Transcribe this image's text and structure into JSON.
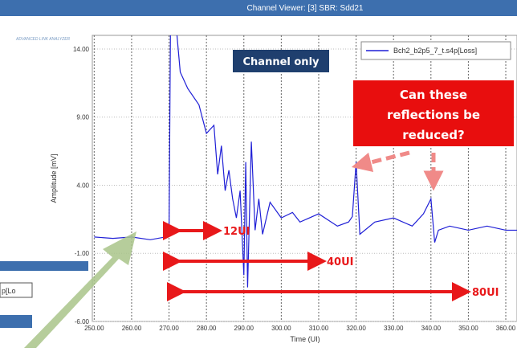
{
  "chart_data": {
    "type": "line",
    "title": "Channel Viewer: [3] SBR: Sdd21",
    "logo": "ADVANCED LINK ANALYZER",
    "x_label": "Time (UI)",
    "y_label": "Amplitude [mV]",
    "series": [
      {
        "name": "Bch2_b2p5_7_t.s4p[Loss]",
        "color": "#1f1fd6",
        "x": [
          250,
          255,
          260,
          265,
          270,
          270.5,
          273,
          275,
          278,
          280,
          282,
          283,
          284,
          285,
          286,
          287,
          288,
          289,
          290,
          290.5,
          291,
          292,
          293,
          294,
          295,
          297,
          300,
          303,
          305,
          310,
          315,
          318,
          319,
          320,
          321,
          325,
          330,
          335,
          338,
          340,
          341,
          342,
          345,
          350,
          355,
          360,
          363
        ],
        "values": [
          0.2,
          0.1,
          0.2,
          0.0,
          0.25,
          20,
          12.3,
          11.1,
          9.9,
          7.8,
          8.4,
          4.8,
          6.9,
          3.6,
          5.1,
          3.0,
          1.6,
          3.6,
          -2.6,
          5.7,
          -3.5,
          7.2,
          0.7,
          3.0,
          0.4,
          2.75,
          1.6,
          2.0,
          1.3,
          1.9,
          1.0,
          1.3,
          1.7,
          5.7,
          0.4,
          1.3,
          1.6,
          1.0,
          1.9,
          3.0,
          -0.2,
          0.7,
          1.0,
          0.7,
          1.0,
          0.7,
          0.7
        ]
      }
    ],
    "xlim": [
      249.5,
      363
    ],
    "ylim": [
      -6,
      15
    ],
    "xticks": [
      {
        "value": 250,
        "label": "250.00"
      },
      {
        "value": 260,
        "label": "260.00"
      },
      {
        "value": 270,
        "label": "270.00"
      },
      {
        "value": 280,
        "label": "280.00"
      },
      {
        "value": 290,
        "label": "290.00"
      },
      {
        "value": 300,
        "label": "300.00"
      },
      {
        "value": 310,
        "label": "310.00"
      },
      {
        "value": 320,
        "label": "320.00"
      },
      {
        "value": 330,
        "label": "330.00"
      },
      {
        "value": 340,
        "label": "340.00"
      },
      {
        "value": 350,
        "label": "350.00"
      },
      {
        "value": 360,
        "label": "360.00"
      }
    ],
    "yticks": [
      {
        "value": -6,
        "label": "-6.00"
      },
      {
        "value": -1,
        "label": "-1.00"
      },
      {
        "value": 4,
        "label": "4.00"
      },
      {
        "value": 9,
        "label": "9.00"
      },
      {
        "value": 14,
        "label": "14.00"
      }
    ],
    "grid": true,
    "annotations": [
      "Channel only",
      "Can these reflections be reduced?",
      "12UI",
      "40UI",
      "80UI"
    ],
    "side_fragment": "p[Lo"
  }
}
